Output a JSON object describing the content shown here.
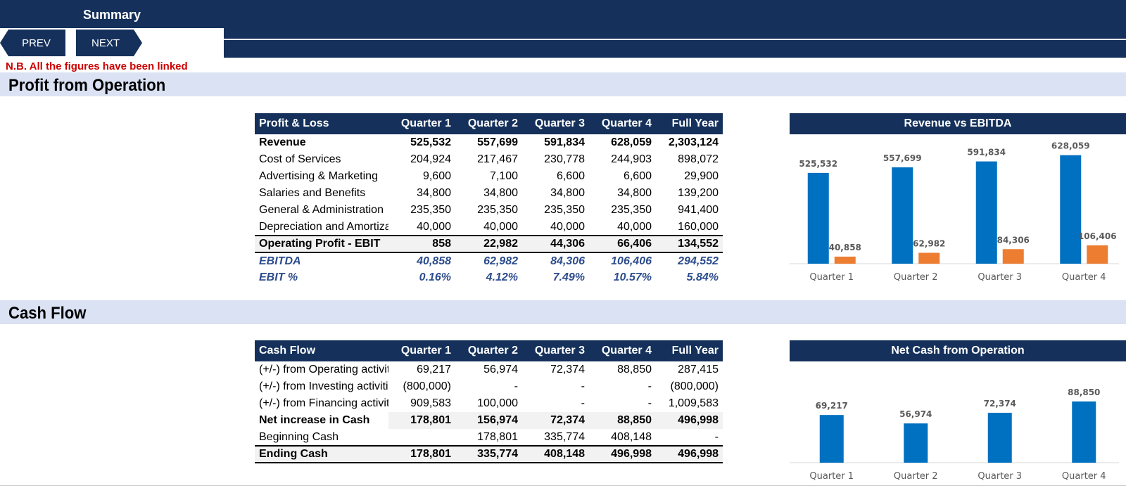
{
  "header": {
    "title": "Summary"
  },
  "nav": {
    "prev_label": "PREV",
    "next_label": "NEXT"
  },
  "note": "N.B. All the figures have been linked",
  "sections": {
    "profit": "Profit from Operation",
    "cash": "Cash Flow"
  },
  "pl_table": {
    "headers": [
      "Profit & Loss",
      "Quarter 1",
      "Quarter 2",
      "Quarter 3",
      "Quarter 4",
      "Full Year"
    ],
    "rows": [
      [
        "Revenue",
        "525,532",
        "557,699",
        "591,834",
        "628,059",
        "2,303,124"
      ],
      [
        "Cost of Services",
        "204,924",
        "217,467",
        "230,778",
        "244,903",
        "898,072"
      ],
      [
        "Advertising & Marketing",
        "9,600",
        "7,100",
        "6,600",
        "6,600",
        "29,900"
      ],
      [
        "Salaries and Benefits",
        "34,800",
        "34,800",
        "34,800",
        "34,800",
        "139,200"
      ],
      [
        "General & Administration",
        "235,350",
        "235,350",
        "235,350",
        "235,350",
        "941,400"
      ],
      [
        "Depreciation and Amortization",
        "40,000",
        "40,000",
        "40,000",
        "40,000",
        "160,000"
      ],
      [
        "Operating Profit - EBIT",
        "858",
        "22,982",
        "44,306",
        "66,406",
        "134,552"
      ],
      [
        "EBITDA",
        "40,858",
        "62,982",
        "84,306",
        "106,406",
        "294,552"
      ],
      [
        "EBIT %",
        "0.16%",
        "4.12%",
        "7.49%",
        "10.57%",
        "5.84%"
      ]
    ]
  },
  "cf_table": {
    "headers": [
      "Cash Flow",
      "Quarter 1",
      "Quarter 2",
      "Quarter 3",
      "Quarter 4",
      "Full Year"
    ],
    "rows": [
      [
        "(+/-) from Operating activities",
        "69,217",
        "56,974",
        "72,374",
        "88,850",
        "287,415"
      ],
      [
        "(+/-) from Investing activities",
        "(800,000)",
        "-",
        "-",
        "-",
        "(800,000)"
      ],
      [
        "(+/-) from Financing activities",
        "909,583",
        "100,000",
        "-",
        "-",
        "1,009,583"
      ],
      [
        "Net increase in Cash",
        "178,801",
        "156,974",
        "72,374",
        "88,850",
        "496,998"
      ],
      [
        "Beginning Cash",
        "",
        "178,801",
        "335,774",
        "408,148",
        "-"
      ],
      [
        "Ending Cash",
        "178,801",
        "335,774",
        "408,148",
        "496,998",
        "496,998"
      ]
    ]
  },
  "chart_data": [
    {
      "type": "bar",
      "title": "Revenue vs EBITDA",
      "categories": [
        "Quarter 1",
        "Quarter 2",
        "Quarter 3",
        "Quarter 4"
      ],
      "series": [
        {
          "values": [
            525532,
            557699,
            591834,
            628059
          ],
          "color": "#0070c0"
        },
        {
          "values": [
            40858,
            62982,
            84306,
            106406
          ],
          "color": "#ed7d31"
        }
      ],
      "labels": [
        [
          "525,532",
          "557,699",
          "591,834",
          "628,059"
        ],
        [
          "40,858",
          "62,982",
          "84,306",
          "106,406"
        ]
      ],
      "ylim": [
        0,
        700000
      ],
      "grid": false,
      "legend": "none"
    },
    {
      "type": "bar",
      "title": "Net Cash from Operation",
      "categories": [
        "Quarter 1",
        "Quarter 2",
        "Quarter 3",
        "Quarter 4"
      ],
      "series": [
        {
          "values": [
            69217,
            56974,
            72374,
            88850
          ],
          "color": "#0070c0"
        }
      ],
      "labels": [
        [
          "69,217",
          "56,974",
          "72,374",
          "88,850"
        ]
      ],
      "ylim": [
        0,
        100000
      ],
      "grid": false,
      "legend": "none"
    }
  ]
}
